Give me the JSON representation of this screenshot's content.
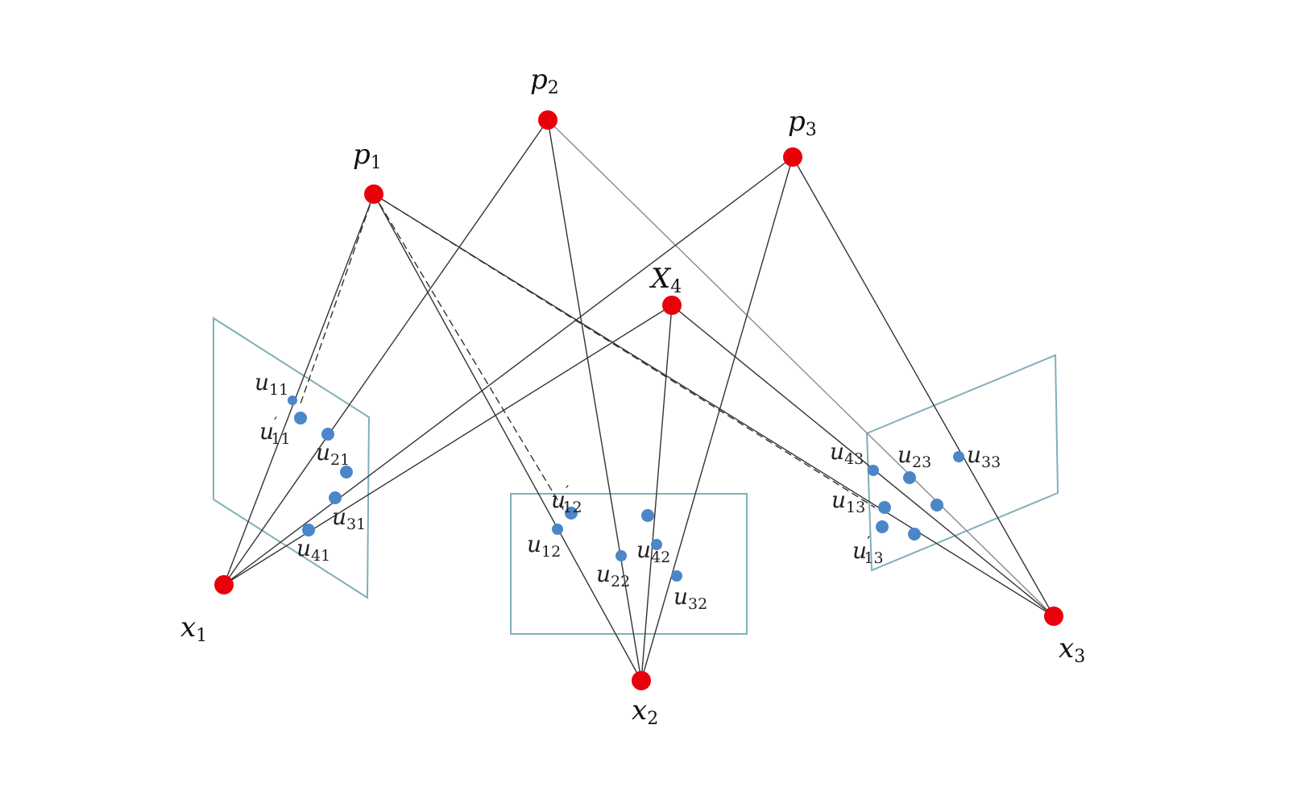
{
  "diagram": {
    "colors": {
      "point": "#e8000b",
      "projection": "#4a86c8",
      "plane": "#7fb0b8",
      "ray": "#333333"
    },
    "points": {
      "p1": {
        "base": "p",
        "sub": "1"
      },
      "p2": {
        "base": "p",
        "sub": "2"
      },
      "p3": {
        "base": "p",
        "sub": "3"
      },
      "X4": {
        "base": "X",
        "sub": "4"
      },
      "x1": {
        "base": "x",
        "sub": "1"
      },
      "x2": {
        "base": "x",
        "sub": "2"
      },
      "x3": {
        "base": "x",
        "sub": "3"
      }
    },
    "projections": {
      "u11": {
        "base": "u",
        "sub": "11",
        "prime": ""
      },
      "u11p": {
        "base": "u",
        "sub": "11",
        "prime": "′"
      },
      "u21": {
        "base": "u",
        "sub": "21",
        "prime": ""
      },
      "u31": {
        "base": "u",
        "sub": "31",
        "prime": ""
      },
      "u41": {
        "base": "u",
        "sub": "41",
        "prime": ""
      },
      "u12": {
        "base": "u",
        "sub": "12",
        "prime": ""
      },
      "u12p": {
        "base": "u",
        "sub": "12",
        "prime": "′"
      },
      "u22": {
        "base": "u",
        "sub": "22",
        "prime": ""
      },
      "u42": {
        "base": "u",
        "sub": "42",
        "prime": ""
      },
      "u32": {
        "base": "u",
        "sub": "32",
        "prime": ""
      },
      "u43": {
        "base": "u",
        "sub": "43",
        "prime": ""
      },
      "u23": {
        "base": "u",
        "sub": "23",
        "prime": ""
      },
      "u33": {
        "base": "u",
        "sub": "33",
        "prime": ""
      },
      "u13": {
        "base": "u",
        "sub": "13",
        "prime": ""
      },
      "u13p": {
        "base": "u",
        "sub": "13",
        "prime": "′"
      }
    }
  }
}
